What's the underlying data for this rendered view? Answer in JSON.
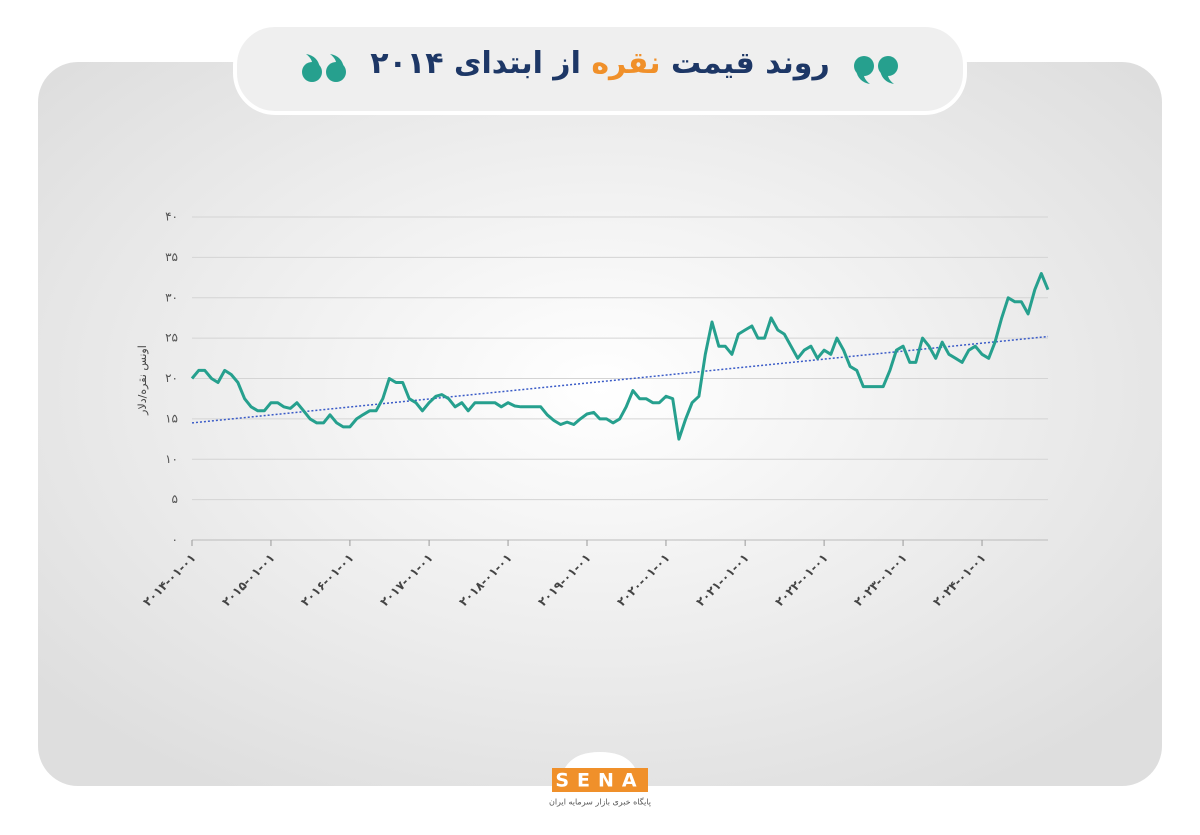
{
  "chart_data": {
    "type": "line",
    "title": [
      "روند قیمت",
      "نقره",
      "از ابتدای ۲۰۱۴"
    ],
    "y_label": "اونس نقره/دلار",
    "x": [
      "2014-01-01",
      "2014-02-01",
      "2014-03-01",
      "2014-04-01",
      "2014-05-01",
      "2014-06-01",
      "2014-07-01",
      "2014-08-01",
      "2014-09-01",
      "2014-10-01",
      "2014-11-01",
      "2014-12-01",
      "2015-01-01",
      "2015-02-01",
      "2015-03-01",
      "2015-04-01",
      "2015-05-01",
      "2015-06-01",
      "2015-07-01",
      "2015-08-01",
      "2015-09-01",
      "2015-10-01",
      "2015-11-01",
      "2015-12-01",
      "2016-01-01",
      "2016-02-01",
      "2016-03-01",
      "2016-04-01",
      "2016-05-01",
      "2016-06-01",
      "2016-07-01",
      "2016-08-01",
      "2016-09-01",
      "2016-10-01",
      "2016-11-01",
      "2016-12-01",
      "2017-01-01",
      "2017-02-01",
      "2017-03-01",
      "2017-04-01",
      "2017-05-01",
      "2017-06-01",
      "2017-07-01",
      "2017-08-01",
      "2017-09-01",
      "2017-10-01",
      "2017-11-01",
      "2017-12-01",
      "2018-01-01",
      "2018-02-01",
      "2018-03-01",
      "2018-04-01",
      "2018-05-01",
      "2018-06-01",
      "2018-07-01",
      "2018-08-01",
      "2018-09-01",
      "2018-10-01",
      "2018-11-01",
      "2018-12-01",
      "2019-01-01",
      "2019-02-01",
      "2019-03-01",
      "2019-04-01",
      "2019-05-01",
      "2019-06-01",
      "2019-07-01",
      "2019-08-01",
      "2019-09-01",
      "2019-10-01",
      "2019-11-01",
      "2019-12-01",
      "2020-01-01",
      "2020-02-01",
      "2020-03-01",
      "2020-04-01",
      "2020-05-01",
      "2020-06-01",
      "2020-07-01",
      "2020-08-01",
      "2020-09-01",
      "2020-10-01",
      "2020-11-01",
      "2020-12-01",
      "2021-01-01",
      "2021-02-01",
      "2021-03-01",
      "2021-04-01",
      "2021-05-01",
      "2021-06-01",
      "2021-07-01",
      "2021-08-01",
      "2021-09-01",
      "2021-10-01",
      "2021-11-01",
      "2021-12-01",
      "2022-01-01",
      "2022-02-01",
      "2022-03-01",
      "2022-04-01",
      "2022-05-01",
      "2022-06-01",
      "2022-07-01",
      "2022-08-01",
      "2022-09-01",
      "2022-10-01",
      "2022-11-01",
      "2022-12-01",
      "2023-01-01",
      "2023-02-01",
      "2023-03-01",
      "2023-04-01",
      "2023-05-01",
      "2023-06-01",
      "2023-07-01",
      "2023-08-01",
      "2023-09-01",
      "2023-10-01",
      "2023-11-01",
      "2023-12-01",
      "2024-01-01",
      "2024-02-01",
      "2024-03-01",
      "2024-04-01",
      "2024-05-01",
      "2024-06-01",
      "2024-07-01",
      "2024-08-01",
      "2024-09-01",
      "2024-10-01",
      "2024-11-01"
    ],
    "values": [
      20,
      21,
      21,
      20,
      19.5,
      21,
      20.5,
      19.5,
      17.5,
      16.5,
      16,
      16,
      17,
      17,
      16.5,
      16.3,
      17,
      16,
      15,
      14.5,
      14.5,
      15.5,
      14.5,
      14,
      14,
      15,
      15.5,
      16,
      16,
      17.5,
      20,
      19.5,
      19.5,
      17.5,
      17,
      16,
      17,
      17.8,
      18,
      17.5,
      16.5,
      17,
      16,
      17,
      17,
      17,
      17,
      16.5,
      17,
      16.6,
      16.5,
      16.5,
      16.5,
      16.5,
      15.5,
      14.8,
      14.3,
      14.6,
      14.3,
      15,
      15.6,
      15.8,
      15,
      15,
      14.5,
      15,
      16.5,
      18.5,
      17.5,
      17.5,
      17,
      17,
      17.8,
      17.5,
      12.5,
      15,
      17,
      17.8,
      23,
      27,
      24,
      24,
      23,
      25.5,
      26,
      26.5,
      25,
      25,
      27.5,
      26,
      25.5,
      24,
      22.5,
      23.5,
      24,
      22.5,
      23.5,
      23,
      25,
      23.5,
      21.5,
      21,
      19,
      19,
      19,
      19,
      21,
      23.5,
      24,
      22,
      22,
      25,
      24,
      22.5,
      24.5,
      23,
      22.5,
      22,
      23.5,
      24,
      23,
      22.5,
      24.5,
      27.5,
      30,
      29.5,
      29.5,
      28,
      31,
      33,
      31
    ],
    "color": "#26a08e",
    "trendline": {
      "values": [
        14.5,
        25.2
      ],
      "color": "#3a5bc7"
    },
    "xlim": [
      "2014-01-01",
      "2024-11-01"
    ],
    "xticks": [
      {
        "value": "2014-01-01",
        "label": "۲۰۱۴-۰۱-۰۱"
      },
      {
        "value": "2015-01-01",
        "label": "۲۰۱۵-۰۱-۰۱"
      },
      {
        "value": "2016-01-01",
        "label": "۲۰۱۶-۰۱-۰۱"
      },
      {
        "value": "2017-01-01",
        "label": "۲۰۱۷-۰۱-۰۱"
      },
      {
        "value": "2018-01-01",
        "label": "۲۰۱۸-۰۱-۰۱"
      },
      {
        "value": "2019-01-01",
        "label": "۲۰۱۹-۰۱-۰۱"
      },
      {
        "value": "2020-01-01",
        "label": "۲۰۲۰-۰۱-۰۱"
      },
      {
        "value": "2021-01-01",
        "label": "۲۰۲۱-۰۱-۰۱"
      },
      {
        "value": "2022-01-01",
        "label": "۲۰۲۲-۰۱-۰۱"
      },
      {
        "value": "2023-01-01",
        "label": "۲۰۲۳-۰۱-۰۱"
      },
      {
        "value": "2024-01-01",
        "label": "۲۰۲۴-۰۱-۰۱"
      }
    ],
    "ylim": [
      0,
      40
    ],
    "yticks": [
      {
        "value": 0,
        "label": "۰"
      },
      {
        "value": 5,
        "label": "۵"
      },
      {
        "value": 10,
        "label": "۱۰"
      },
      {
        "value": 15,
        "label": "۱۵"
      },
      {
        "value": 20,
        "label": "۲۰"
      },
      {
        "value": 25,
        "label": "۲۵"
      },
      {
        "value": 30,
        "label": "۳۰"
      },
      {
        "value": 35,
        "label": "۳۵"
      },
      {
        "value": 40,
        "label": "۴۰"
      }
    ],
    "grid": true
  },
  "footer": {
    "logo": "SENA",
    "tagline": "پایگاه خبری بازار سرمایه ایران"
  }
}
